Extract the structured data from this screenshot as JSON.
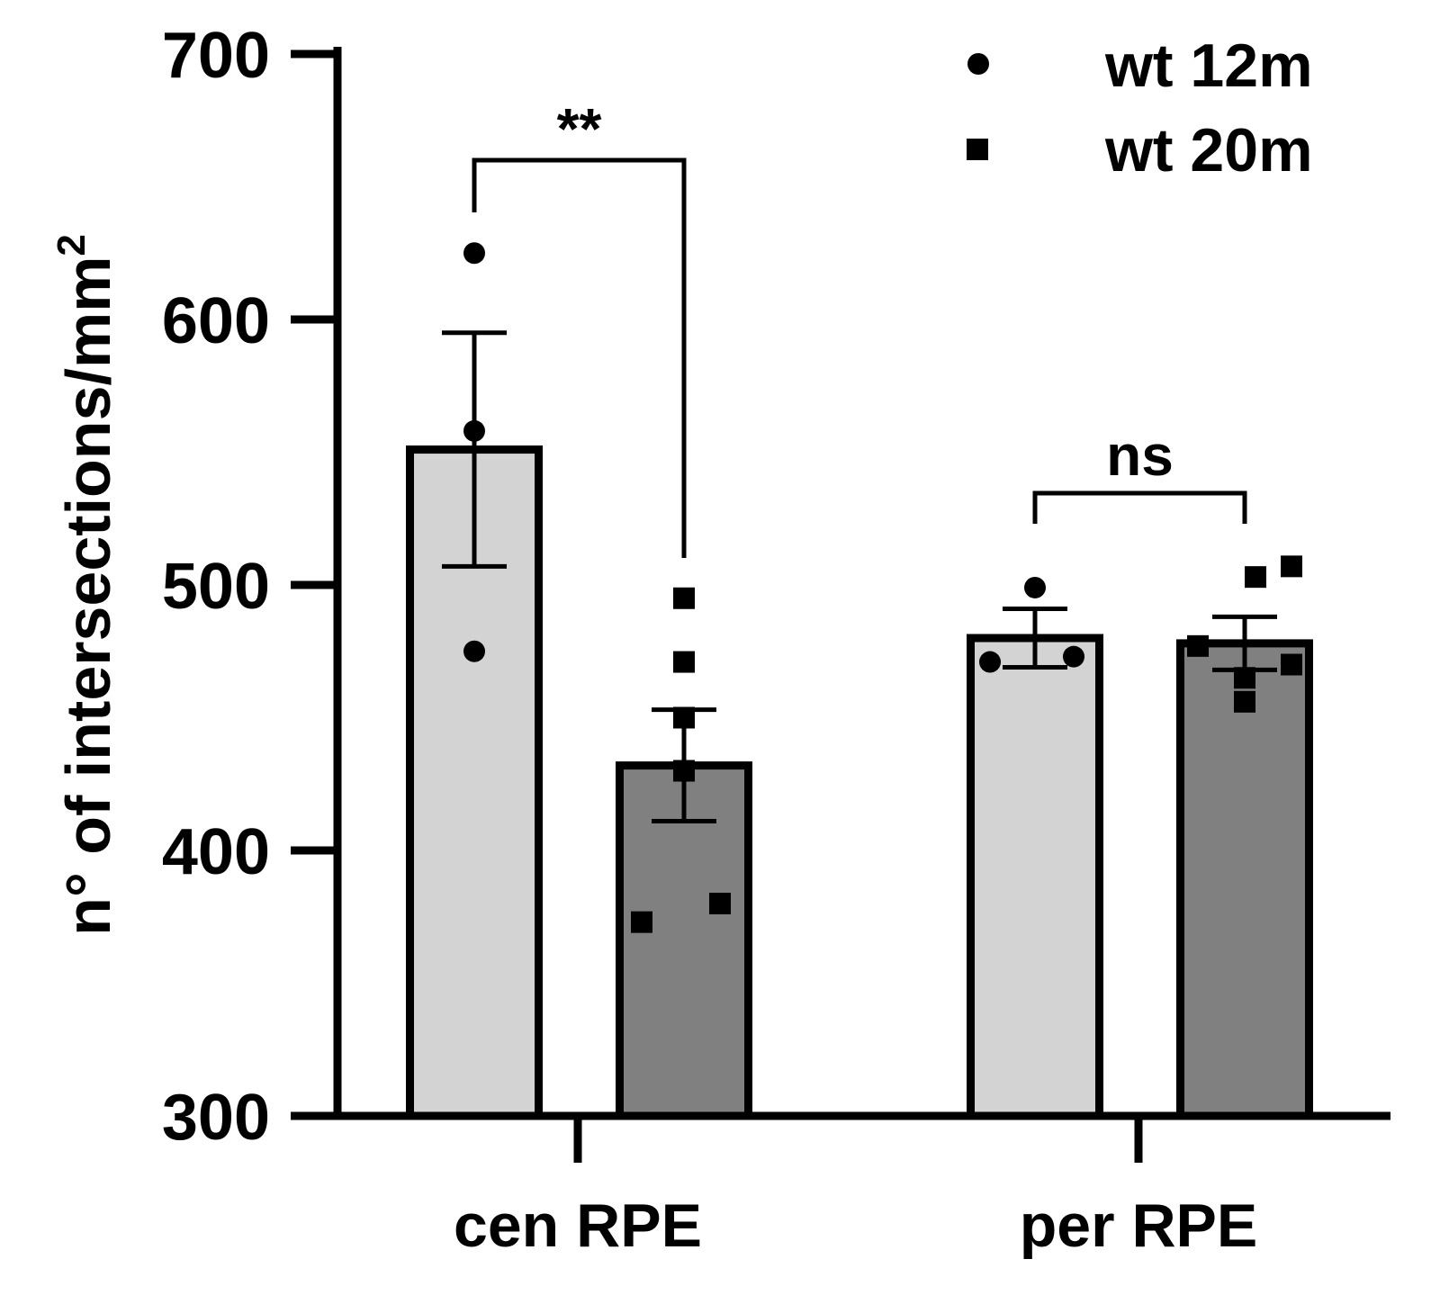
{
  "chart_data": {
    "type": "bar",
    "title": "",
    "xlabel": "",
    "ylabel": "n° of intersections/mm",
    "ylabel_superscript": "2",
    "ylim": [
      300,
      700
    ],
    "yticks": [
      300,
      400,
      500,
      600,
      700
    ],
    "categories": [
      "cen RPE",
      "per RPE"
    ],
    "colors": {
      "wt 12m": "#d3d3d3",
      "wt 20m": "#808080",
      "stroke": "#000000"
    },
    "series": [
      {
        "name": "wt 12m",
        "marker": "circle",
        "values": [
          551,
          480
        ],
        "sem": [
          44,
          11
        ],
        "points": [
          [
            625,
            558,
            475
          ],
          [
            499,
            471,
            473
          ]
        ]
      },
      {
        "name": "wt 20m",
        "marker": "square",
        "values": [
          432,
          478
        ],
        "sem": [
          21,
          10
        ],
        "points": [
          [
            495,
            471,
            450,
            430,
            380,
            373
          ],
          [
            507,
            503,
            477,
            470,
            465,
            456
          ]
        ]
      }
    ],
    "significance": [
      {
        "category": "cen RPE",
        "label": "**"
      },
      {
        "category": "per RPE",
        "label": "ns"
      }
    ],
    "legend": {
      "position": "top-right",
      "entries": [
        "wt 12m",
        "wt 20m"
      ]
    }
  }
}
